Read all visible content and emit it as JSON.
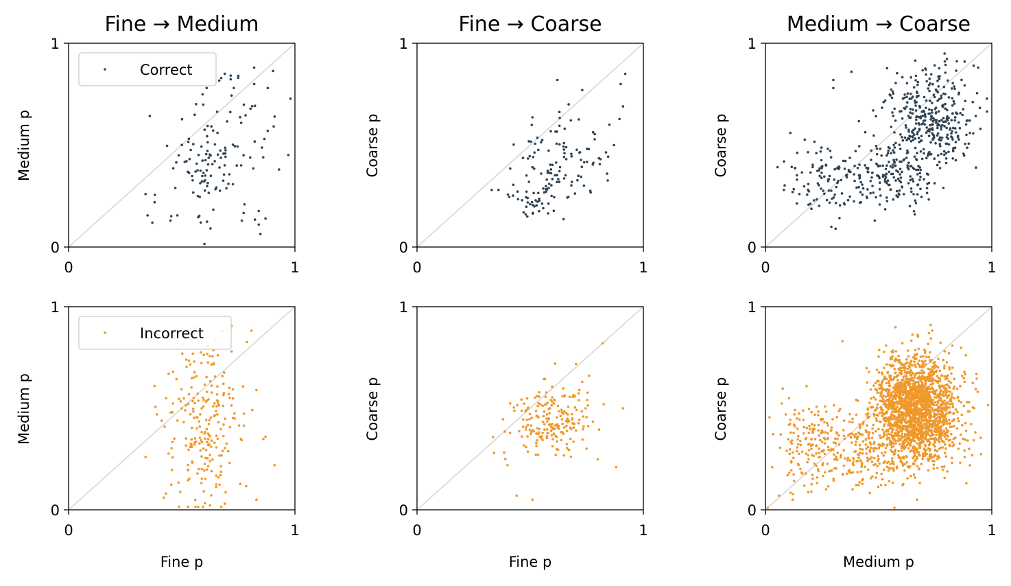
{
  "colors": {
    "correct": "#2f4354",
    "incorrect": "#f0982b",
    "diagonal": "#d3d3d3",
    "axis": "#000000"
  },
  "chart_data": [
    {
      "type": "scatter",
      "row": 0,
      "col": 0,
      "title": "Fine → Medium",
      "xlabel": "",
      "ylabel": "Medium p",
      "xlim": [
        0,
        1
      ],
      "ylim": [
        0,
        1
      ],
      "xticks": [
        "0",
        "1"
      ],
      "yticks": [
        "0",
        "1"
      ],
      "diagonal": true,
      "legend": "Correct",
      "legend_position": "top-left",
      "series": [
        {
          "name": "Correct",
          "color_key": "correct",
          "generated": {
            "n": 130,
            "seed": 11,
            "clusters": [
              {
                "mx": 0.62,
                "my": 0.38,
                "sx": 0.07,
                "sy": 0.06,
                "w": 0.4
              },
              {
                "mx": 0.7,
                "my": 0.62,
                "sx": 0.12,
                "sy": 0.13,
                "w": 0.35
              },
              {
                "mx": 0.6,
                "my": 0.2,
                "sx": 0.15,
                "sy": 0.07,
                "w": 0.25
              }
            ]
          },
          "points": [
            [
              0.34,
              0.26
            ],
            [
              0.38,
              0.22
            ],
            [
              0.37,
              0.12
            ],
            [
              0.45,
              0.13
            ],
            [
              0.84,
              0.11
            ],
            [
              0.87,
              0.14
            ],
            [
              0.93,
              0.38
            ],
            [
              0.82,
              0.88
            ],
            [
              0.69,
              0.85
            ],
            [
              0.75,
              0.84
            ],
            [
              0.88,
              0.78
            ],
            [
              0.91,
              0.64
            ],
            [
              0.88,
              0.57
            ],
            [
              0.86,
              0.44
            ],
            [
              0.82,
              0.8
            ],
            [
              0.61,
              0.78
            ],
            [
              0.73,
              0.78
            ]
          ]
        }
      ]
    },
    {
      "type": "scatter",
      "row": 0,
      "col": 1,
      "title": "Fine → Coarse",
      "xlabel": "",
      "ylabel": "Coarse p",
      "xlim": [
        0,
        1
      ],
      "ylim": [
        0,
        1
      ],
      "xticks": [
        "0",
        "1"
      ],
      "yticks": [
        "0",
        "1"
      ],
      "diagonal": true,
      "series": [
        {
          "name": "Correct",
          "color_key": "correct",
          "generated": {
            "n": 140,
            "seed": 23,
            "clusters": [
              {
                "mx": 0.64,
                "my": 0.42,
                "sx": 0.1,
                "sy": 0.1,
                "w": 0.7
              },
              {
                "mx": 0.5,
                "my": 0.24,
                "sx": 0.07,
                "sy": 0.05,
                "w": 0.3
              }
            ]
          },
          "points": [
            [
              0.33,
              0.28
            ],
            [
              0.36,
              0.28
            ],
            [
              0.48,
              0.16
            ],
            [
              0.62,
              0.82
            ],
            [
              0.92,
              0.85
            ],
            [
              0.9,
              0.8
            ],
            [
              0.91,
              0.69
            ],
            [
              0.73,
              0.77
            ],
            [
              0.67,
              0.7
            ],
            [
              0.87,
              0.5
            ],
            [
              0.84,
              0.36
            ],
            [
              0.85,
              0.6
            ]
          ]
        }
      ]
    },
    {
      "type": "scatter",
      "row": 0,
      "col": 2,
      "title": "Medium → Coarse",
      "xlabel": "",
      "ylabel": "Coarse p",
      "xlim": [
        0,
        1
      ],
      "ylim": [
        0,
        1
      ],
      "xticks": [
        "0",
        "1"
      ],
      "yticks": [
        "0",
        "1"
      ],
      "diagonal": true,
      "series": [
        {
          "name": "Correct",
          "color_key": "correct",
          "generated": {
            "n": 620,
            "seed": 37,
            "clusters": [
              {
                "mx": 0.73,
                "my": 0.63,
                "sx": 0.09,
                "sy": 0.12,
                "w": 0.55
              },
              {
                "mx": 0.57,
                "my": 0.36,
                "sx": 0.08,
                "sy": 0.1,
                "w": 0.25
              },
              {
                "mx": 0.3,
                "my": 0.33,
                "sx": 0.1,
                "sy": 0.08,
                "w": 0.2
              }
            ]
          },
          "points": [
            [
              0.11,
              0.56
            ],
            [
              0.12,
              0.27
            ],
            [
              0.15,
              0.26
            ],
            [
              0.3,
              0.82
            ],
            [
              0.3,
              0.78
            ],
            [
              0.38,
              0.86
            ],
            [
              0.31,
              0.09
            ],
            [
              0.92,
              0.89
            ],
            [
              0.94,
              0.88
            ],
            [
              0.88,
              0.91
            ],
            [
              0.95,
              0.58
            ],
            [
              0.93,
              0.39
            ]
          ]
        }
      ]
    },
    {
      "type": "scatter",
      "row": 1,
      "col": 0,
      "title": "",
      "xlabel": "Fine p",
      "ylabel": "Medium p",
      "xlim": [
        0,
        1
      ],
      "ylim": [
        0,
        1
      ],
      "xticks": [
        "0",
        "1"
      ],
      "yticks": [
        "0",
        "1"
      ],
      "diagonal": true,
      "legend": "Incorrect",
      "legend_position": "top-left",
      "series": [
        {
          "name": "Incorrect",
          "color_key": "incorrect",
          "generated": {
            "n": 230,
            "seed": 53,
            "clusters": [
              {
                "mx": 0.6,
                "my": 0.42,
                "sx": 0.08,
                "sy": 0.2,
                "w": 1.0
              }
            ]
          },
          "points": [
            [
              0.34,
              0.26
            ],
            [
              0.38,
              0.61
            ],
            [
              0.39,
              0.47
            ],
            [
              0.42,
              0.06
            ],
            [
              0.43,
              0.08
            ],
            [
              0.69,
              0.03
            ],
            [
              0.83,
              0.05
            ],
            [
              0.87,
              0.36
            ],
            [
              0.91,
              0.22
            ],
            [
              0.83,
              0.59
            ],
            [
              0.72,
              0.78
            ],
            [
              0.65,
              0.84
            ],
            [
              0.68,
              0.88
            ],
            [
              0.52,
              0.74
            ]
          ]
        }
      ]
    },
    {
      "type": "scatter",
      "row": 1,
      "col": 1,
      "title": "",
      "xlabel": "Fine p",
      "ylabel": "Coarse p",
      "xlim": [
        0,
        1
      ],
      "ylim": [
        0,
        1
      ],
      "xticks": [
        "0",
        "1"
      ],
      "yticks": [
        "0",
        "1"
      ],
      "diagonal": true,
      "series": [
        {
          "name": "Incorrect",
          "color_key": "incorrect",
          "generated": {
            "n": 200,
            "seed": 71,
            "clusters": [
              {
                "mx": 0.6,
                "my": 0.44,
                "sx": 0.09,
                "sy": 0.09,
                "w": 1.0
              }
            ]
          },
          "points": [
            [
              0.34,
              0.28
            ],
            [
              0.39,
              0.25
            ],
            [
              0.4,
              0.22
            ],
            [
              0.44,
              0.07
            ],
            [
              0.51,
              0.05
            ],
            [
              0.82,
              0.82
            ],
            [
              0.91,
              0.5
            ],
            [
              0.88,
              0.21
            ],
            [
              0.76,
              0.66
            ],
            [
              0.73,
              0.63
            ],
            [
              0.61,
              0.72
            ]
          ]
        }
      ]
    },
    {
      "type": "scatter",
      "row": 1,
      "col": 2,
      "title": "",
      "xlabel": "Medium p",
      "ylabel": "Coarse p",
      "xlim": [
        0,
        1
      ],
      "ylim": [
        0,
        1
      ],
      "xticks": [
        "0",
        "1"
      ],
      "yticks": [
        "0",
        "1"
      ],
      "diagonal": true,
      "series": [
        {
          "name": "Incorrect",
          "color_key": "incorrect",
          "generated": {
            "n": 2300,
            "seed": 97,
            "clusters": [
              {
                "mx": 0.67,
                "my": 0.5,
                "sx": 0.09,
                "sy": 0.13,
                "w": 0.82
              },
              {
                "mx": 0.45,
                "my": 0.3,
                "sx": 0.1,
                "sy": 0.1,
                "w": 0.1
              },
              {
                "mx": 0.18,
                "my": 0.32,
                "sx": 0.07,
                "sy": 0.11,
                "w": 0.08
              }
            ]
          },
          "points": [
            [
              0.01,
              0.01
            ],
            [
              0.03,
              0.21
            ],
            [
              0.06,
              0.07
            ],
            [
              0.09,
              0.47
            ],
            [
              0.12,
              0.05
            ],
            [
              0.34,
              0.83
            ],
            [
              0.57,
              0.01
            ],
            [
              0.67,
              0.05
            ],
            [
              0.73,
              0.91
            ],
            [
              0.85,
              0.45
            ],
            [
              0.88,
              0.63
            ],
            [
              0.9,
              0.53
            ],
            [
              0.88,
              0.26
            ],
            [
              0.9,
              0.3
            ]
          ]
        }
      ]
    }
  ]
}
